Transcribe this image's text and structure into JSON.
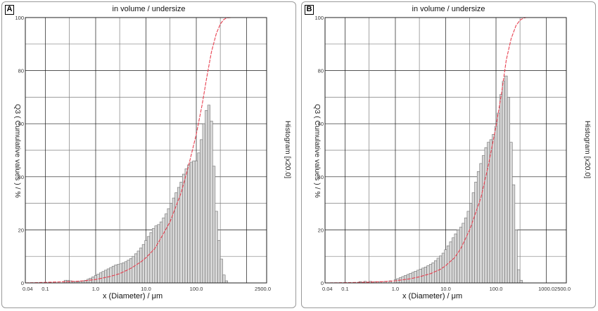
{
  "chart_data": [
    {
      "panel_label": "A",
      "type": "bar",
      "title": "in volume / undersize",
      "xlabel": "x (Diameter) / μm",
      "ylabel": "Q3 ( Cumulative values ) / %",
      "ylabel_right": "Histogram [x20.0]",
      "x_scale": "log",
      "xlim": [
        0.04,
        2500.0
      ],
      "ylim": [
        0,
        100
      ],
      "x_ticks": [
        "0.04",
        "0.1",
        "1.0",
        "10.0",
        "100.0",
        "2500.0"
      ],
      "y_ticks": [
        "0",
        "20",
        "40",
        "60",
        "80",
        "100"
      ],
      "grid": true,
      "series": [
        {
          "kind": "histogram",
          "x": [
            0.25,
            0.28,
            0.32,
            0.36,
            0.4,
            0.45,
            0.5,
            0.56,
            0.63,
            0.71,
            0.79,
            0.89,
            1.0,
            1.12,
            1.26,
            1.41,
            1.58,
            1.78,
            2.0,
            2.24,
            2.51,
            2.82,
            3.16,
            3.55,
            3.98,
            4.47,
            5.01,
            5.62,
            6.31,
            7.08,
            7.94,
            8.91,
            10.0,
            11.2,
            12.6,
            14.1,
            15.8,
            17.8,
            20.0,
            22.4,
            25.1,
            28.2,
            31.6,
            35.5,
            39.8,
            44.7,
            50.1,
            56.2,
            63.1,
            70.8,
            79.4,
            89.1,
            100.0,
            112.2,
            125.9,
            141.3,
            158.5,
            177.8,
            199.5,
            223.9,
            251.2,
            281.8,
            316.2,
            354.8,
            398.1
          ],
          "values": [
            1.0,
            1.0,
            0.8,
            0.6,
            0.5,
            0.5,
            0.6,
            0.8,
            1.0,
            1.4,
            1.8,
            2.3,
            2.8,
            3.3,
            3.8,
            4.3,
            4.8,
            5.3,
            5.8,
            6.3,
            6.8,
            7.0,
            7.2,
            7.6,
            8.0,
            8.6,
            9.2,
            10.0,
            11.0,
            12.0,
            13.2,
            14.5,
            16.0,
            17.5,
            19.0,
            20.5,
            21.5,
            22.0,
            23.0,
            24.5,
            26.0,
            28.0,
            30.0,
            32.0,
            34.0,
            36.0,
            38.0,
            41.0,
            43.0,
            44.5,
            45.5,
            46.0,
            46.0,
            49.0,
            54.0,
            60.0,
            65.0,
            67.0,
            61.0,
            44.0,
            27.0,
            16.0,
            9.0,
            3.0,
            0.8
          ]
        },
        {
          "kind": "cumulative",
          "name": "Q3",
          "x": [
            0.04,
            0.1,
            0.3,
            0.6,
            1.0,
            2.0,
            3.0,
            5.0,
            8.0,
            10.0,
            15.0,
            20.0,
            30.0,
            50.0,
            70.0,
            100.0,
            130.0,
            160.0,
            200.0,
            250.0,
            300.0,
            350.0,
            400.0,
            500.0,
            2500.0
          ],
          "values": [
            0,
            0.2,
            0.5,
            0.8,
            1.3,
            2.5,
            3.5,
            5.5,
            8.0,
            9.5,
            13.0,
            17.0,
            23.0,
            34.0,
            44.0,
            56.0,
            67.0,
            77.0,
            87.0,
            94.0,
            97.5,
            99.2,
            99.9,
            100,
            100
          ]
        }
      ]
    },
    {
      "panel_label": "B",
      "type": "bar",
      "title": "in volume / undersize",
      "xlabel": "x (Diameter) / μm",
      "ylabel": "Q3 ( Cumulative values ) / %",
      "ylabel_right": "Histogram [x20.0]",
      "x_scale": "log",
      "xlim": [
        0.04,
        2500.0
      ],
      "ylim": [
        0,
        100
      ],
      "x_ticks": [
        "0.04",
        "0.1",
        "1.0",
        "10.0",
        "100.0",
        "1000.0",
        "2500.0"
      ],
      "y_ticks": [
        "0",
        "20",
        "40",
        "60",
        "80",
        "100"
      ],
      "grid": true,
      "series": [
        {
          "kind": "histogram",
          "x": [
            0.2,
            0.25,
            0.32,
            0.4,
            0.5,
            0.63,
            0.79,
            1.0,
            1.12,
            1.26,
            1.41,
            1.58,
            1.78,
            2.0,
            2.24,
            2.51,
            2.82,
            3.16,
            3.55,
            3.98,
            4.47,
            5.01,
            5.62,
            6.31,
            7.08,
            7.94,
            8.91,
            10.0,
            11.2,
            12.6,
            14.1,
            15.8,
            17.8,
            20.0,
            22.4,
            25.1,
            28.2,
            31.6,
            35.5,
            39.8,
            44.7,
            50.1,
            56.2,
            63.1,
            70.8,
            79.4,
            89.1,
            100.0,
            112.2,
            125.9,
            141.3,
            158.5,
            177.8,
            199.5,
            223.9,
            251.2,
            281.8,
            316.2
          ],
          "values": [
            0.5,
            0.6,
            0.6,
            0.5,
            0.5,
            0.6,
            0.8,
            1.2,
            1.6,
            2.0,
            2.4,
            2.8,
            3.2,
            3.6,
            4.0,
            4.4,
            4.8,
            5.2,
            5.6,
            6.0,
            6.5,
            7.0,
            7.6,
            8.4,
            9.3,
            10.2,
            11.2,
            12.5,
            14.0,
            15.5,
            17.0,
            18.5,
            20.0,
            21.0,
            22.5,
            24.5,
            27.0,
            30.0,
            34.0,
            38.0,
            42.0,
            45.0,
            48.0,
            51.0,
            53.0,
            54.0,
            56.0,
            59.0,
            64.0,
            71.0,
            76.0,
            78.0,
            70.0,
            53.0,
            37.0,
            20.0,
            5.0,
            1.0
          ]
        },
        {
          "kind": "cumulative",
          "name": "Q3",
          "x": [
            0.04,
            0.1,
            0.3,
            0.6,
            1.0,
            2.0,
            3.0,
            5.0,
            8.0,
            10.0,
            15.0,
            20.0,
            30.0,
            50.0,
            70.0,
            100.0,
            130.0,
            160.0,
            200.0,
            250.0,
            300.0,
            350.0,
            400.0,
            500.0,
            2500.0
          ],
          "values": [
            0,
            0.1,
            0.3,
            0.5,
            0.8,
            1.6,
            2.3,
            3.5,
            5.2,
            6.5,
            9.5,
            13.0,
            20.0,
            32.0,
            44.0,
            59.0,
            72.0,
            84.0,
            92.0,
            97.0,
            99.0,
            99.8,
            100,
            100,
            100
          ]
        }
      ]
    }
  ],
  "colors": {
    "bar_fill": "#d9d9d9",
    "bar_stroke": "#6e6e6e",
    "curve": "#e84050",
    "grid": "#1a1a1a",
    "grid_minor": "#7f7f7f"
  }
}
